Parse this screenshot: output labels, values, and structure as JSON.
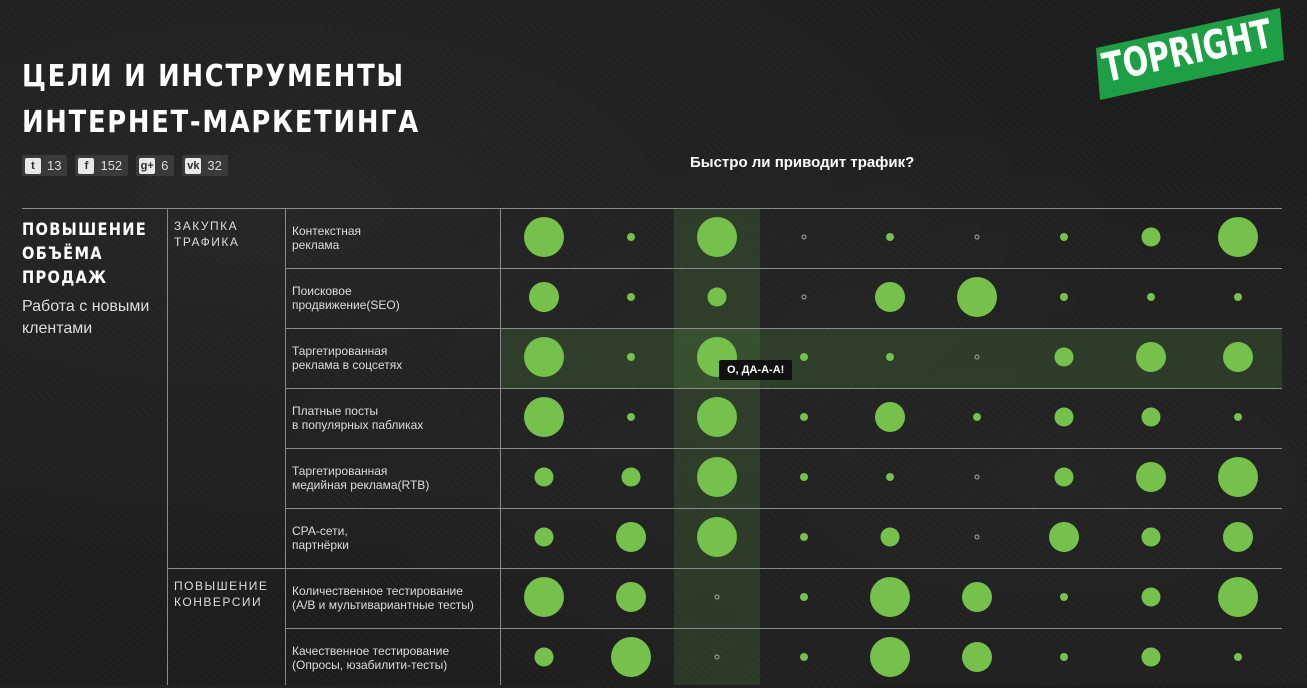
{
  "header": {
    "title_line1": "ЦЕЛИ И ИНСТРУМЕНТЫ",
    "title_line2": "ИНТЕРНЕТ-МАРКЕТИНГА",
    "question": "Быстро ли приводит трафик?"
  },
  "logo": {
    "text": "TOPRIGHT",
    "color": "#1e9e45"
  },
  "social": [
    {
      "icon": "twitter-icon",
      "glyph": "t",
      "count": "13"
    },
    {
      "icon": "facebook-icon",
      "glyph": "f",
      "count": "152"
    },
    {
      "icon": "googleplus-icon",
      "glyph": "g+",
      "count": "6"
    },
    {
      "icon": "vk-icon",
      "glyph": "vk",
      "count": "32"
    }
  ],
  "colors": {
    "dot": "#75c14b",
    "highlight": "#5aa046"
  },
  "category": {
    "title_line1": "ПОВЫШЕНИЕ",
    "title_line2": "ОБЪЁМА",
    "title_line3": "ПРОДАЖ",
    "subtitle": "Работа с новыми клентами"
  },
  "groups": [
    {
      "line1": "ЗАКУПКА",
      "line2": "ТРАФИКА"
    },
    {
      "line1": "ПОВЫШЕНИЕ",
      "line2": "КОНВЕРСИИ"
    }
  ],
  "tools": [
    {
      "line1": "Контекстная",
      "line2": "реклама"
    },
    {
      "line1": "Поисковое",
      "line2": "продвижение(SEO)"
    },
    {
      "line1": "Таргетированная",
      "line2": "реклама в соцсетях"
    },
    {
      "line1": "Платные посты",
      "line2": "в популярных пабликах"
    },
    {
      "line1": "Таргетированная",
      "line2": "медийная реклама(RTB)"
    },
    {
      "line1": "СРА-сети,",
      "line2": "партнёрки"
    },
    {
      "line1": "Количественное тестирование",
      "line2": "(A/B и мультивариантные тесты)"
    },
    {
      "line1": "Качественное тестирование",
      "line2": "(Опросы, юзабилити-тесты)"
    }
  ],
  "ratings": [
    [
      4,
      1,
      4,
      0,
      1,
      0,
      1,
      2,
      4
    ],
    [
      3,
      1,
      2,
      0,
      3,
      4,
      1,
      1,
      1
    ],
    [
      4,
      1,
      4,
      1,
      1,
      0,
      2,
      3,
      3
    ],
    [
      4,
      1,
      4,
      1,
      3,
      1,
      2,
      2,
      1
    ],
    [
      2,
      2,
      4,
      1,
      1,
      0,
      2,
      3,
      4
    ],
    [
      2,
      3,
      4,
      1,
      2,
      0,
      3,
      2,
      3
    ],
    [
      4,
      3,
      0,
      1,
      4,
      3,
      1,
      2,
      4
    ],
    [
      2,
      4,
      0,
      1,
      4,
      3,
      1,
      2,
      1
    ]
  ],
  "tooltip": "О, ДА-А-А!"
}
